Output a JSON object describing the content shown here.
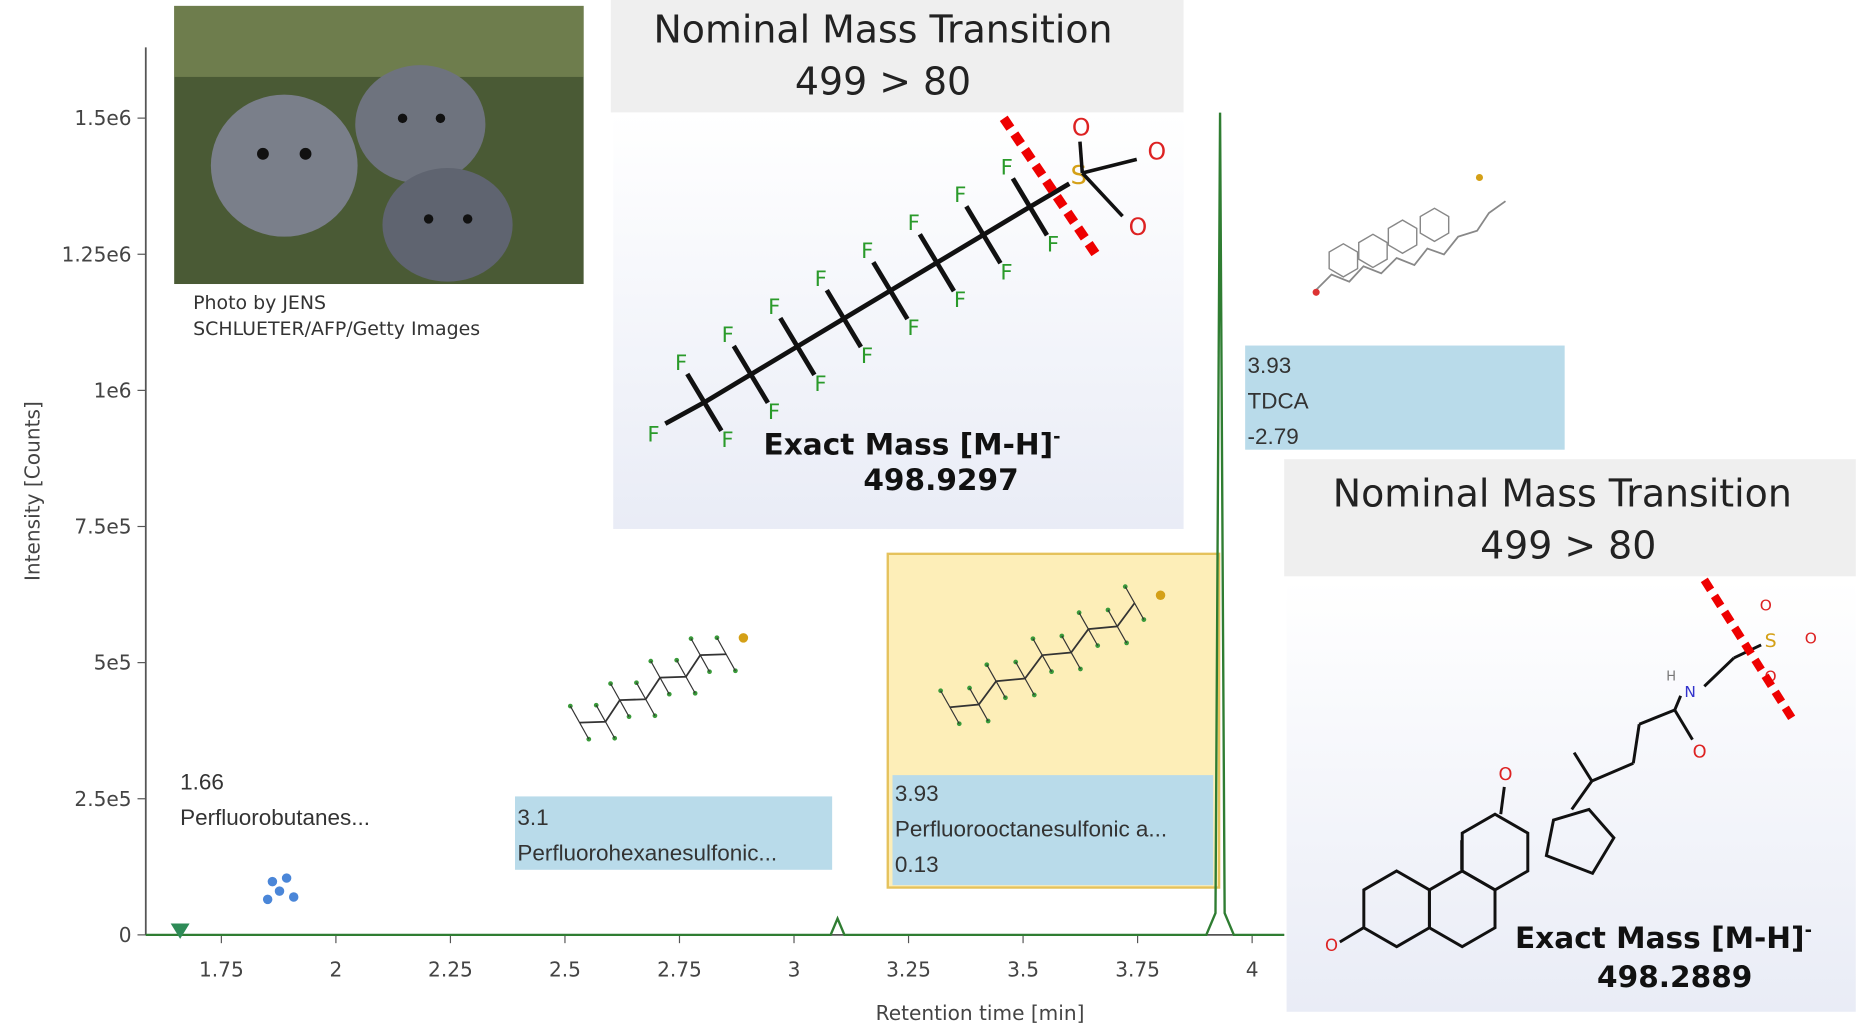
{
  "chart_data": {
    "type": "line",
    "x_label": "Retention time [min]",
    "y_label": "Intensity [Counts]",
    "xlim": [
      1.585,
      4.07
    ],
    "xticks": [
      1.75,
      2,
      2.25,
      2.5,
      2.75,
      3,
      3.25,
      3.5,
      3.75,
      4
    ],
    "ylim": [
      0,
      1630000
    ],
    "yticks": [
      {
        "value": 0,
        "label": "0"
      },
      {
        "value": 250000,
        "label": "2.5e5"
      },
      {
        "value": 500000,
        "label": "5e5"
      },
      {
        "value": 750000,
        "label": "7.5e5"
      },
      {
        "value": 1000000,
        "label": "1e6"
      },
      {
        "value": 1250000,
        "label": "1.25e6"
      },
      {
        "value": 1500000,
        "label": "1.5e6"
      }
    ],
    "series": [
      {
        "color": "#2f7d32",
        "x": [
          1.585,
          3.08,
          3.095,
          3.11,
          3.9,
          3.92,
          3.93,
          3.94,
          3.96,
          4.07
        ],
        "values": [
          0,
          0,
          30000,
          0,
          0,
          40000,
          1510000,
          40000,
          0,
          0
        ]
      }
    ],
    "markers": {
      "color": "#2e8b57",
      "x": [
        1.66
      ],
      "values": [
        10000
      ]
    },
    "annotations": [
      {
        "lines": [
          "1.66",
          "Perfluorobutanes..."
        ]
      },
      {
        "lines": [
          "3.1",
          "Perfluorohexanesulfonic..."
        ]
      },
      {
        "lines": [
          "3.93",
          "Perfluorooctanesulfonic a...",
          "0.13"
        ]
      },
      {
        "lines": [
          "3.93",
          "TDCA",
          "-2.79"
        ]
      }
    ]
  },
  "photo_credit": [
    "Photo by JENS",
    "SCHLUETER/AFP/Getty Images"
  ],
  "atoms": {
    "fluorine": "F",
    "oxygen": "O",
    "sulfur": "S",
    "nitrogen": "N",
    "hydrogen": "H"
  },
  "callouts": [
    {
      "title": "Nominal Mass Transition",
      "transition": "499 > 80",
      "label": "Exact Mass [M-H]",
      "charge": "-",
      "mass": "498.9297"
    },
    {
      "title": "Nominal Mass Transition",
      "transition": "499 > 80",
      "label": "Exact Mass [M-H]",
      "charge": "-",
      "mass": "498.2889"
    }
  ]
}
